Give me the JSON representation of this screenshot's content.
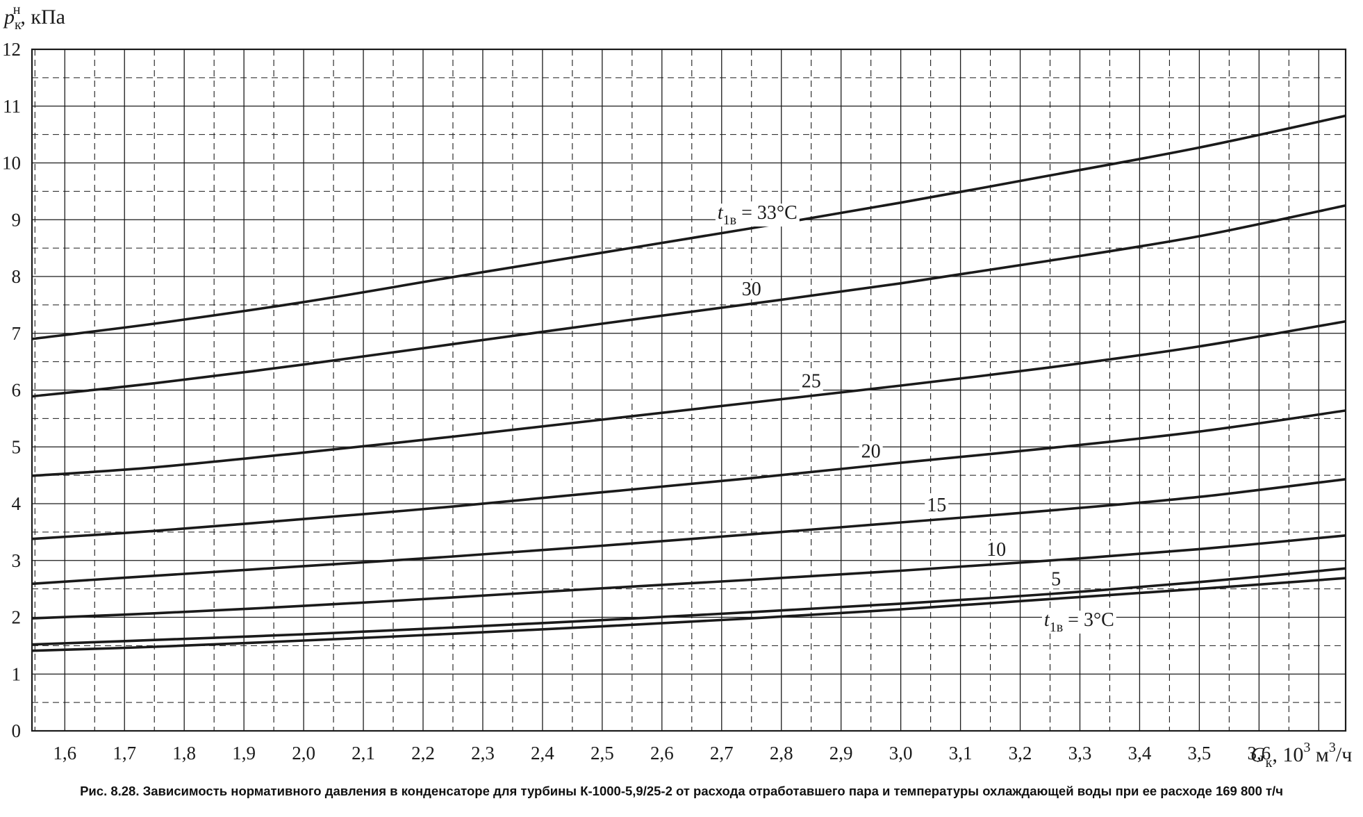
{
  "caption": "Рис. 8.28. Зависимость нормативного давления в конденсаторе для турбины К-1000-5,9/25-2 от расхода отработавшего пара и температуры охлаждающей воды при ее расходе 169 800 т/ч",
  "chart_data": {
    "type": "line",
    "title": "",
    "ylabel": {
      "main": "p",
      "sub": "к",
      "sup": "н",
      "unit": ", кПа"
    },
    "xlabel": {
      "main": "G",
      "sub": "к",
      "unit_prefix": ", 10",
      "unit_exp": "3",
      "unit_tail": " м",
      "unit_tail_exp": "3",
      "unit_end": "/ч"
    },
    "xlim": [
      1.545,
      3.745
    ],
    "ylim": [
      0,
      12
    ],
    "x_ticks": [
      1.6,
      1.7,
      1.8,
      1.9,
      2.0,
      2.1,
      2.2,
      2.3,
      2.4,
      2.5,
      2.6,
      2.7,
      2.8,
      2.9,
      3.0,
      3.1,
      3.2,
      3.3,
      3.4,
      3.5,
      3.6
    ],
    "x_tick_labels": [
      "1,6",
      "1,7",
      "1,8",
      "1,9",
      "2,0",
      "2,1",
      "2,2",
      "2,3",
      "2,4",
      "2,5",
      "2,6",
      "2,7",
      "2,8",
      "2,9",
      "3,0",
      "3,1",
      "3,2",
      "3,3",
      "3,4",
      "3,5",
      "3,6"
    ],
    "y_ticks": [
      0,
      1,
      2,
      3,
      4,
      5,
      6,
      7,
      8,
      9,
      10,
      11,
      12
    ],
    "y_tick_labels": [
      "0",
      "1",
      "2",
      "3",
      "4",
      "5",
      "6",
      "7",
      "8",
      "9",
      "10",
      "11",
      "12"
    ],
    "grid": {
      "x_solid_step": 0.1,
      "x_dashed_offset": 0.05,
      "y_solid_step": 1,
      "y_dashed_offset": 0.5
    },
    "series": [
      {
        "name": "33",
        "label": {
          "prefix": "t",
          "sub": "1в",
          "text": " = 33°C"
        },
        "x": [
          1.545,
          1.75,
          2.0,
          2.25,
          2.5,
          2.75,
          3.0,
          3.25,
          3.5,
          3.745
        ],
        "y": [
          6.9,
          7.17,
          7.55,
          7.99,
          8.42,
          8.85,
          9.3,
          9.78,
          10.27,
          10.83
        ]
      },
      {
        "name": "30",
        "label": {
          "text": "30"
        },
        "x": [
          1.545,
          1.75,
          2.0,
          2.25,
          2.5,
          2.75,
          3.0,
          3.25,
          3.5,
          3.745
        ],
        "y": [
          5.89,
          6.12,
          6.45,
          6.81,
          7.17,
          7.52,
          7.88,
          8.28,
          8.71,
          9.25
        ]
      },
      {
        "name": "25",
        "label": {
          "text": "25"
        },
        "x": [
          1.545,
          1.75,
          2.0,
          2.25,
          2.5,
          2.75,
          3.0,
          3.25,
          3.5,
          3.745
        ],
        "y": [
          4.49,
          4.64,
          4.9,
          5.18,
          5.48,
          5.78,
          6.08,
          6.4,
          6.77,
          7.21
        ]
      },
      {
        "name": "20",
        "label": {
          "text": "20"
        },
        "x": [
          1.545,
          1.75,
          2.0,
          2.25,
          2.5,
          2.75,
          3.0,
          3.25,
          3.5,
          3.745
        ],
        "y": [
          3.38,
          3.52,
          3.73,
          3.95,
          4.2,
          4.45,
          4.72,
          4.98,
          5.27,
          5.64
        ]
      },
      {
        "name": "15",
        "label": {
          "text": "15"
        },
        "x": [
          1.545,
          1.75,
          2.0,
          2.25,
          2.5,
          2.75,
          3.0,
          3.25,
          3.5,
          3.745
        ],
        "y": [
          2.59,
          2.73,
          2.9,
          3.07,
          3.26,
          3.46,
          3.67,
          3.88,
          4.12,
          4.43
        ]
      },
      {
        "name": "10",
        "label": {
          "text": "10"
        },
        "x": [
          1.545,
          1.75,
          2.0,
          2.25,
          2.5,
          2.75,
          3.0,
          3.25,
          3.5,
          3.745
        ],
        "y": [
          1.98,
          2.07,
          2.2,
          2.35,
          2.51,
          2.66,
          2.82,
          3.0,
          3.2,
          3.44
        ]
      },
      {
        "name": "5",
        "label": {
          "text": "5"
        },
        "x": [
          1.545,
          1.75,
          2.0,
          2.25,
          2.5,
          2.75,
          3.0,
          3.25,
          3.5,
          3.745
        ],
        "y": [
          1.52,
          1.6,
          1.7,
          1.82,
          1.95,
          2.09,
          2.24,
          2.41,
          2.62,
          2.86
        ]
      },
      {
        "name": "3",
        "label": {
          "prefix": "t",
          "sub": "1в",
          "text": " = 3°C"
        },
        "x": [
          1.545,
          1.75,
          2.0,
          2.25,
          2.5,
          2.75,
          3.0,
          3.25,
          3.5,
          3.745
        ],
        "y": [
          1.41,
          1.48,
          1.59,
          1.71,
          1.84,
          1.98,
          2.14,
          2.32,
          2.5,
          2.69
        ]
      }
    ],
    "colors": {
      "line": "#1a1a1a",
      "grid": "#1a1a1a",
      "background": "#ffffff"
    }
  }
}
